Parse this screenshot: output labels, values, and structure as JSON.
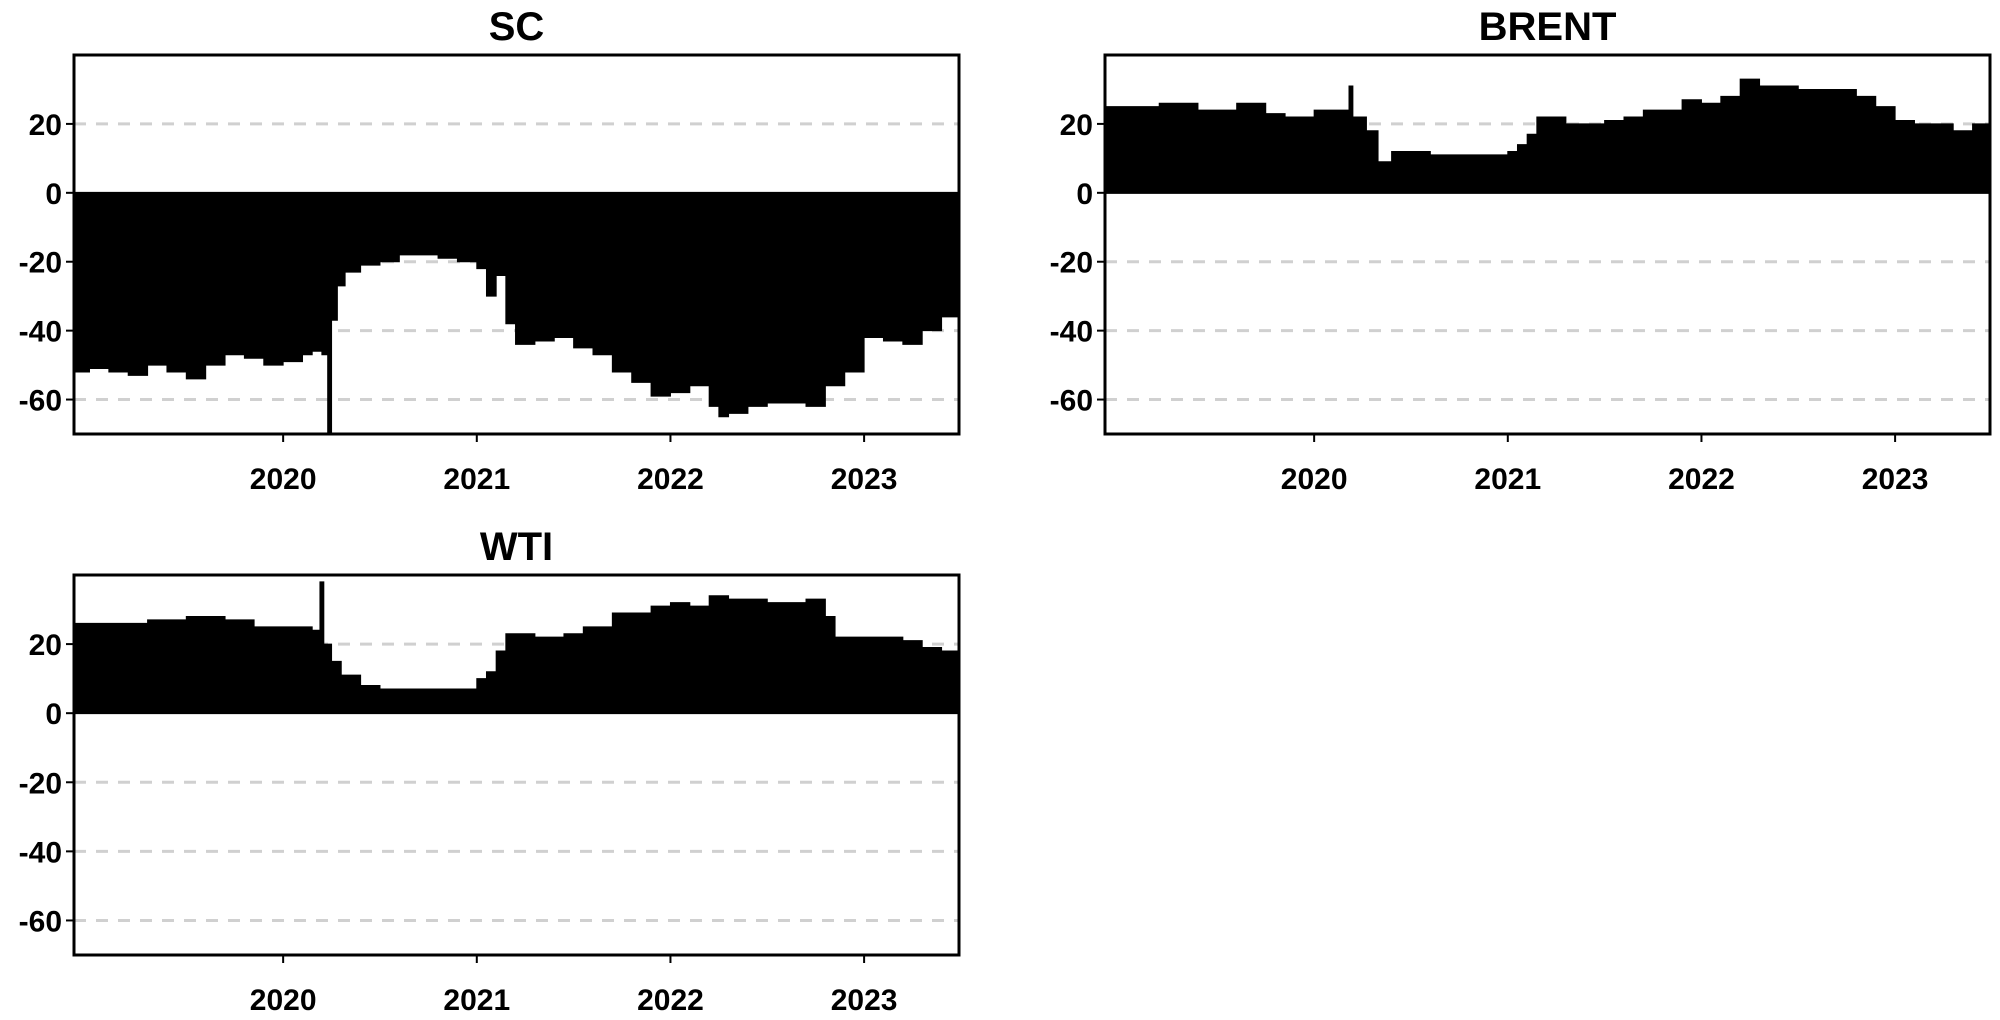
{
  "chart_data": [
    {
      "type": "area",
      "title": "SC",
      "xlim": [
        2018.92,
        2023.49
      ],
      "ylim": [
        -70,
        40
      ],
      "x_ticks": [
        "2020",
        "2021",
        "2022",
        "2023"
      ],
      "y_ticks": [
        "20",
        "0",
        "-20",
        "-40",
        "-60"
      ],
      "grid": "dashed horizontal at 20, -20, -40, -60",
      "fill_color": "#000000",
      "x": [
        2018.92,
        2019.0,
        2019.1,
        2019.2,
        2019.3,
        2019.4,
        2019.5,
        2019.6,
        2019.7,
        2019.8,
        2019.9,
        2020.0,
        2020.1,
        2020.15,
        2020.2,
        2020.23,
        2020.25,
        2020.28,
        2020.32,
        2020.4,
        2020.5,
        2020.6,
        2020.7,
        2020.8,
        2020.9,
        2021.0,
        2021.05,
        2021.1,
        2021.15,
        2021.2,
        2021.3,
        2021.4,
        2021.5,
        2021.6,
        2021.7,
        2021.8,
        2021.9,
        2022.0,
        2022.1,
        2022.2,
        2022.25,
        2022.3,
        2022.4,
        2022.5,
        2022.6,
        2022.7,
        2022.8,
        2022.9,
        2023.0,
        2023.1,
        2023.2,
        2023.3,
        2023.4,
        2023.49
      ],
      "values": [
        -52,
        -51,
        -52,
        -53,
        -50,
        -52,
        -54,
        -50,
        -47,
        -48,
        -50,
        -49,
        -47,
        -46,
        -47,
        -70,
        -37,
        -27,
        -23,
        -21,
        -20,
        -18,
        -18,
        -19,
        -20,
        -22,
        -30,
        -24,
        -38,
        -44,
        -43,
        -42,
        -45,
        -47,
        -52,
        -55,
        -59,
        -58,
        -56,
        -62,
        -65,
        -64,
        -62,
        -61,
        -61,
        -62,
        -56,
        -52,
        -42,
        -43,
        -44,
        -40,
        -36,
        -39
      ]
    },
    {
      "type": "area",
      "title": "BRENT",
      "xlim": [
        2018.92,
        2023.49
      ],
      "ylim": [
        -70,
        40
      ],
      "x_ticks": [
        "2020",
        "2021",
        "2022",
        "2023"
      ],
      "y_ticks": [
        "20",
        "0",
        "-20",
        "-40",
        "-60"
      ],
      "grid": "dashed horizontal at 20, -20, -40, -60",
      "fill_color": "#000000",
      "x": [
        2018.92,
        2019.0,
        2019.2,
        2019.4,
        2019.6,
        2019.75,
        2019.85,
        2020.0,
        2020.15,
        2020.18,
        2020.2,
        2020.27,
        2020.33,
        2020.4,
        2020.5,
        2020.6,
        2020.8,
        2021.0,
        2021.05,
        2021.1,
        2021.15,
        2021.3,
        2021.5,
        2021.6,
        2021.7,
        2021.9,
        2022.0,
        2022.1,
        2022.2,
        2022.3,
        2022.5,
        2022.7,
        2022.8,
        2022.9,
        2023.0,
        2023.1,
        2023.2,
        2023.3,
        2023.4,
        2023.49
      ],
      "values": [
        25,
        25,
        26,
        24,
        26,
        23,
        22,
        24,
        24,
        31,
        22,
        18,
        9,
        12,
        12,
        11,
        11,
        12,
        14,
        17,
        22,
        20,
        21,
        22,
        24,
        27,
        26,
        28,
        33,
        31,
        30,
        30,
        28,
        25,
        21,
        20,
        20,
        18,
        20,
        21
      ]
    },
    {
      "type": "area",
      "title": "WTI",
      "xlim": [
        2018.92,
        2023.49
      ],
      "ylim": [
        -70,
        40
      ],
      "x_ticks": [
        "2020",
        "2021",
        "2022",
        "2023"
      ],
      "y_ticks": [
        "20",
        "0",
        "-20",
        "-40",
        "-60"
      ],
      "grid": "dashed horizontal at 20, -20, -40, -60",
      "fill_color": "#000000",
      "x": [
        2018.92,
        2019.1,
        2019.3,
        2019.5,
        2019.7,
        2019.85,
        2020.0,
        2020.15,
        2020.19,
        2020.21,
        2020.25,
        2020.3,
        2020.4,
        2020.5,
        2020.7,
        2020.9,
        2021.0,
        2021.05,
        2021.1,
        2021.15,
        2021.3,
        2021.45,
        2021.55,
        2021.7,
        2021.9,
        2022.0,
        2022.1,
        2022.2,
        2022.3,
        2022.5,
        2022.7,
        2022.8,
        2022.85,
        2023.0,
        2023.2,
        2023.3,
        2023.4,
        2023.49
      ],
      "values": [
        26,
        26,
        27,
        28,
        27,
        25,
        25,
        24,
        38,
        20,
        15,
        11,
        8,
        7,
        7,
        7,
        10,
        12,
        18,
        23,
        22,
        23,
        25,
        29,
        31,
        32,
        31,
        34,
        33,
        32,
        33,
        28,
        22,
        22,
        21,
        19,
        18,
        18
      ]
    }
  ]
}
